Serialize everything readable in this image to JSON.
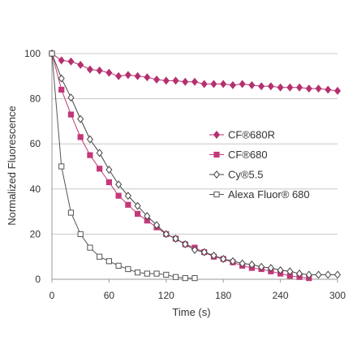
{
  "chart_data": {
    "type": "line",
    "title": "",
    "xlabel": "Time (s)",
    "ylabel": "Normalized Fluorescence",
    "xlim": [
      0,
      300
    ],
    "ylim": [
      0,
      100
    ],
    "xticks": [
      0,
      60,
      120,
      180,
      240,
      300
    ],
    "yticks": [
      0,
      20,
      40,
      60,
      80,
      100
    ],
    "grid": "horizontal",
    "legend_position": "center-right",
    "series": [
      {
        "name": "CF®680R",
        "color": "#b5306f",
        "marker": "diamond-filled",
        "x": [
          0,
          10,
          20,
          30,
          40,
          50,
          60,
          70,
          80,
          90,
          100,
          110,
          120,
          130,
          140,
          150,
          160,
          170,
          180,
          190,
          200,
          210,
          220,
          230,
          240,
          250,
          260,
          270,
          280,
          290,
          300
        ],
        "y": [
          100,
          97,
          96.5,
          95,
          93,
          92.5,
          91.5,
          90,
          90.5,
          90,
          89.5,
          88.5,
          88,
          88,
          87.5,
          87.5,
          86.5,
          86.5,
          86.5,
          86,
          86.5,
          86,
          85.5,
          85.5,
          85,
          85,
          85,
          84.5,
          84.5,
          84,
          83.5
        ]
      },
      {
        "name": "CF®680",
        "color": "#c2397a",
        "marker": "square-filled",
        "x": [
          0,
          10,
          20,
          30,
          40,
          50,
          60,
          70,
          80,
          90,
          100,
          110,
          120,
          130,
          140,
          150,
          160,
          170,
          180,
          190,
          200,
          210,
          220,
          230,
          240,
          250,
          260,
          270
        ],
        "y": [
          100,
          84,
          73,
          63,
          55,
          49,
          43,
          37,
          33,
          29,
          26,
          23,
          20,
          18,
          15.5,
          14,
          12,
          10,
          9,
          7.5,
          6,
          5,
          4.5,
          3.5,
          2.5,
          1.5,
          1,
          0.5
        ]
      },
      {
        "name": "Cy®5.5",
        "color": "#444444",
        "marker": "diamond-open",
        "x": [
          0,
          10,
          20,
          30,
          40,
          50,
          60,
          70,
          80,
          90,
          100,
          110,
          120,
          130,
          140,
          150,
          160,
          170,
          180,
          190,
          200,
          210,
          220,
          230,
          240,
          250,
          260,
          270,
          280,
          290,
          300
        ],
        "y": [
          100,
          89,
          80.5,
          71,
          62,
          56,
          48.5,
          42,
          37,
          32.5,
          28,
          24,
          20,
          18,
          15.5,
          13,
          12,
          10.5,
          9,
          8,
          7,
          6.5,
          5.5,
          5,
          4,
          3.5,
          2.5,
          2,
          2,
          2,
          2
        ]
      },
      {
        "name": "Alexa Fluor® 680",
        "color": "#555555",
        "marker": "square-open",
        "x": [
          0,
          10,
          20,
          30,
          40,
          50,
          60,
          70,
          80,
          90,
          100,
          110,
          120,
          130,
          140,
          150
        ],
        "y": [
          100,
          50,
          29.5,
          20,
          14,
          10,
          8,
          6,
          4.5,
          3,
          2.5,
          2.5,
          2,
          1,
          0.5,
          0.5
        ]
      }
    ]
  }
}
